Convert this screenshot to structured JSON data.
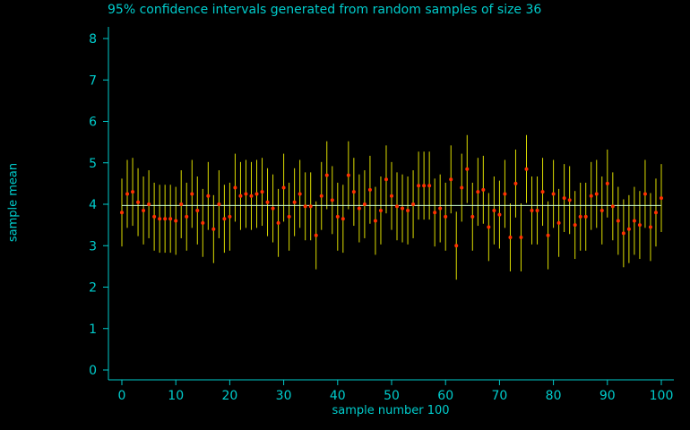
{
  "chart_data": {
    "type": "errorbar",
    "title": "95% confidence intervals generated from random samples of size 36",
    "xlabel": "sample number 100",
    "ylabel": "sample mean",
    "xlim": [
      -2,
      102
    ],
    "ylim": [
      -0.2,
      8.4
    ],
    "x_ticks": [
      0,
      10,
      20,
      30,
      40,
      50,
      60,
      70,
      80,
      90,
      100
    ],
    "y_ticks": [
      0,
      1,
      2,
      3,
      4,
      5,
      6,
      7,
      8
    ],
    "reference_mean": 3.97,
    "half_width": 0.82,
    "means": [
      3.8,
      4.25,
      4.3,
      4.05,
      3.85,
      4.0,
      3.7,
      3.65,
      3.65,
      3.65,
      3.6,
      4.0,
      3.7,
      4.25,
      3.85,
      3.55,
      4.2,
      3.4,
      4.0,
      3.65,
      3.7,
      4.4,
      4.2,
      4.25,
      4.2,
      4.25,
      4.3,
      4.05,
      3.9,
      3.55,
      4.4,
      3.7,
      4.05,
      4.25,
      3.95,
      3.95,
      3.25,
      4.2,
      4.7,
      4.1,
      3.7,
      3.65,
      4.7,
      4.3,
      3.9,
      4.0,
      4.35,
      3.6,
      3.85,
      4.6,
      4.2,
      3.95,
      3.9,
      3.85,
      4.0,
      4.45,
      4.45,
      4.45,
      3.8,
      3.9,
      3.7,
      4.6,
      3.0,
      4.4,
      4.85,
      3.7,
      4.3,
      4.35,
      3.45,
      3.85,
      3.75,
      4.25,
      3.2,
      4.5,
      3.2,
      4.85,
      3.85,
      3.85,
      4.3,
      3.25,
      4.25,
      3.55,
      4.15,
      4.1,
      3.5,
      3.7,
      3.7,
      4.2,
      4.25,
      3.85,
      4.5,
      3.95,
      3.6,
      3.3,
      3.4,
      3.6,
      3.5,
      4.25,
      3.45,
      3.8,
      4.15
    ],
    "colors": {
      "background": "#000000",
      "axis": "#00cccc",
      "interval": "#dddd00",
      "point": "#ff3300",
      "reference_line": "#ccffcc"
    }
  }
}
